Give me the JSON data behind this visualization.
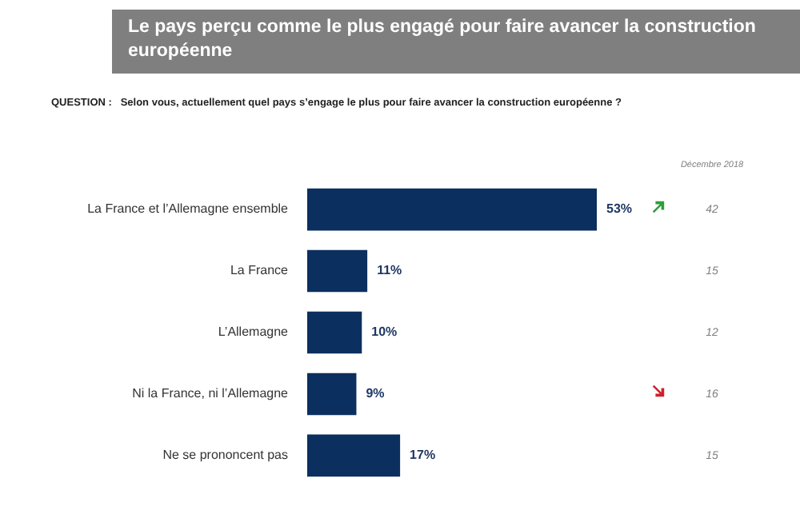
{
  "chart_data": {
    "type": "bar",
    "orientation": "horizontal",
    "title": "Le pays perçu comme le plus engagé pour faire avancer la construction européenne",
    "subtitle": "QUESTION :   Selon vous, actuellement quel pays s’engage le plus pour faire avancer la construction européenne ?",
    "categories": [
      "La France et l’Allemagne ensemble",
      "La France",
      "L’Allemagne",
      "Ni la France, ni l’Allemagne",
      "Ne se prononcent pas"
    ],
    "values": [
      53,
      11,
      10,
      9,
      17
    ],
    "color": "#0b2f5e",
    "value_labels": [
      "53%",
      "11%",
      "10%",
      "9%",
      "17%"
    ],
    "grid": false,
    "legend": false,
    "annotations": [
      "Décembre 2018",
      "42",
      "15",
      "12",
      "16",
      "15"
    ]
  }
}
